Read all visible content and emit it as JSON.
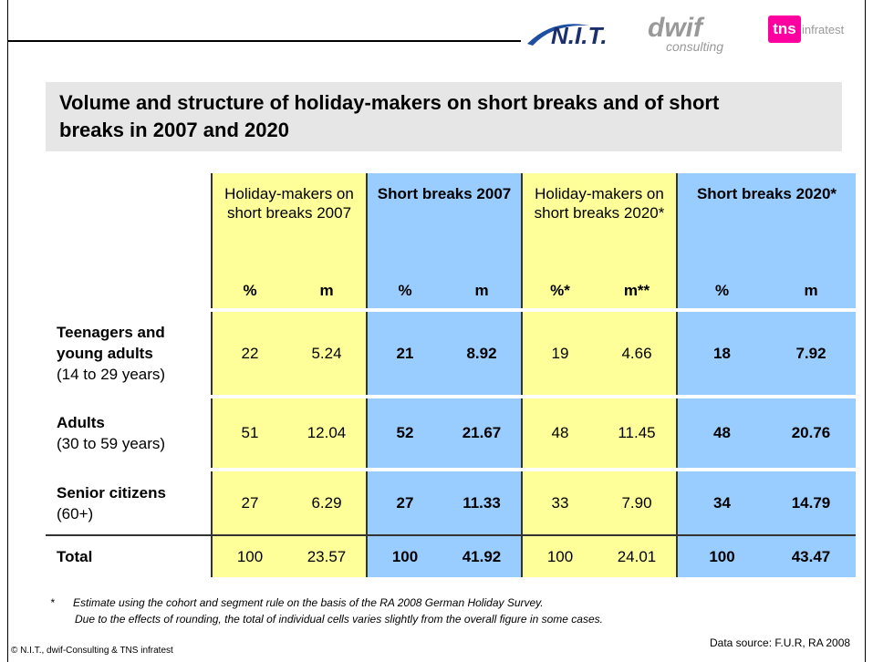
{
  "header": {
    "logos": [
      "N.I.T.",
      "dwif",
      "consulting",
      "tns",
      "infratest"
    ]
  },
  "title": "Volume and structure of holiday-makers on short breaks and of short breaks in 2007 and 2020",
  "table": {
    "groups": [
      "Holiday-makers on short breaks 2007",
      "Short breaks 2007",
      "Holiday-makers on short breaks 2020*",
      "Short breaks 2020*"
    ],
    "subheaders": [
      "%",
      "m",
      "%",
      "m",
      "%*",
      "m**",
      "%",
      "m"
    ],
    "rows": [
      {
        "label": "Teenagers and young adults",
        "sublabel": "(14 to 29 years)",
        "cells": [
          "22",
          "5.24",
          "21",
          "8.92",
          "19",
          "4.66",
          "18",
          "7.92"
        ]
      },
      {
        "label": "Adults",
        "sublabel": "(30 to 59 years)",
        "cells": [
          "51",
          "12.04",
          "52",
          "21.67",
          "48",
          "11.45",
          "48",
          "20.76"
        ]
      },
      {
        "label": "Senior citizens",
        "sublabel": "(60+)",
        "cells": [
          "27",
          "6.29",
          "27",
          "11.33",
          "33",
          "7.90",
          "34",
          "14.79"
        ]
      },
      {
        "label": "Total",
        "cells": [
          "100",
          "23.57",
          "100",
          "41.92",
          "100",
          "24.01",
          "100",
          "43.47"
        ]
      }
    ]
  },
  "footnote": {
    "marker": "*",
    "lines": [
      "Estimate using the cohort and segment rule on the basis of the RA 2008 German Holiday Survey.",
      "Due to the effects of rounding, the total of individual cells varies slightly from the overall figure in some cases."
    ]
  },
  "footer": {
    "copyright": "© N.I.T., dwif-Consulting & TNS infratest",
    "source": "Data source: F.U.R, RA 2008"
  }
}
